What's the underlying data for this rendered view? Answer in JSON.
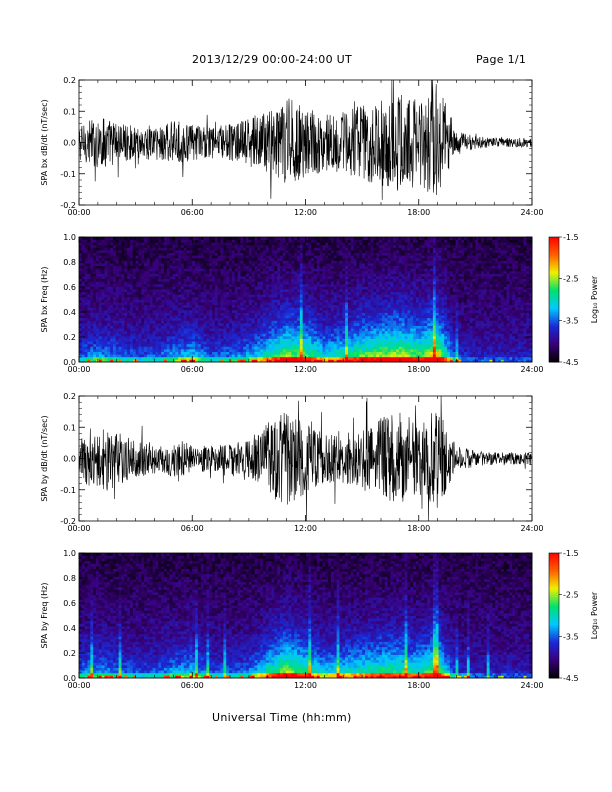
{
  "header": {
    "date_range": "2013/12/29  00:00-24:00 UT",
    "page": "Page 1/1"
  },
  "footer": {
    "xlabel": "Universal Time (hh:mm)"
  },
  "colorbar": {
    "title": "Log₁₀ Power",
    "ticks": [
      "-1.5",
      "-2.5",
      "-3.5",
      "-4.5"
    ],
    "range": [
      -4.5,
      -1.5
    ],
    "colors": [
      "#000000",
      "#3a007a",
      "#1a2ad8",
      "#00c8ff",
      "#00e070",
      "#f0f000",
      "#ff6000",
      "#ff0000"
    ]
  },
  "chart_data": [
    {
      "type": "line",
      "ylabel": "SPA bx dB/dt (nT/sec)",
      "ylim": [
        -0.2,
        0.2
      ],
      "yticks": [
        "0.2",
        "0.1",
        "0.0",
        "-0.1",
        "-0.2"
      ],
      "xticks": [
        "00:00",
        "06:00",
        "12:00",
        "18:00",
        "24:00"
      ],
      "xlim_hours": [
        0,
        24
      ],
      "envelope": {
        "hours": [
          0,
          1,
          2,
          3,
          4,
          5,
          6,
          7,
          8,
          9,
          10,
          11,
          12,
          13,
          14,
          15,
          16,
          17,
          18,
          19,
          20,
          21,
          22,
          23,
          24
        ],
        "amplitude": [
          0.05,
          0.09,
          0.07,
          0.05,
          0.06,
          0.07,
          0.06,
          0.05,
          0.06,
          0.08,
          0.1,
          0.15,
          0.12,
          0.09,
          0.1,
          0.12,
          0.14,
          0.16,
          0.14,
          0.2,
          0.04,
          0.02,
          0.015,
          0.015,
          0.015
        ]
      },
      "color": "#000000"
    },
    {
      "type": "heatmap",
      "ylabel": "SPA bx Freq (Hz)",
      "ylim": [
        0.0,
        1.0
      ],
      "yticks": [
        "1.0",
        "0.8",
        "0.6",
        "0.4",
        "0.2",
        "0.0"
      ],
      "xticks": [
        "00:00",
        "06:00",
        "12:00",
        "18:00",
        "24:00"
      ],
      "xlim_hours": [
        0,
        24
      ],
      "zlim": [
        -4.5,
        -1.5
      ],
      "activity_hours": [
        0,
        1,
        2,
        3,
        4,
        5,
        6,
        7,
        8,
        9,
        10,
        11,
        12,
        13,
        14,
        15,
        16,
        17,
        18,
        19,
        20,
        21,
        22,
        23,
        24
      ],
      "activity": [
        0.2,
        0.3,
        0.25,
        0.2,
        0.2,
        0.3,
        0.35,
        0.2,
        0.25,
        0.3,
        0.45,
        0.6,
        0.55,
        0.4,
        0.45,
        0.55,
        0.6,
        0.65,
        0.55,
        0.7,
        0.15,
        0.1,
        0.1,
        0.1,
        0.1
      ]
    },
    {
      "type": "line",
      "ylabel": "SPA by dB/dt (nT/sec)",
      "ylim": [
        -0.2,
        0.2
      ],
      "yticks": [
        "0.2",
        "0.1",
        "0.0",
        "-0.1",
        "-0.2"
      ],
      "xticks": [
        "00:00",
        "06:00",
        "12:00",
        "18:00",
        "24:00"
      ],
      "xlim_hours": [
        0,
        24
      ],
      "envelope": {
        "hours": [
          0,
          1,
          2,
          3,
          4,
          5,
          6,
          7,
          8,
          9,
          10,
          11,
          12,
          13,
          14,
          15,
          16,
          17,
          18,
          19,
          20,
          21,
          22,
          23,
          24
        ],
        "amplitude": [
          0.06,
          0.12,
          0.09,
          0.06,
          0.05,
          0.06,
          0.05,
          0.04,
          0.05,
          0.06,
          0.12,
          0.16,
          0.11,
          0.08,
          0.08,
          0.1,
          0.13,
          0.15,
          0.12,
          0.16,
          0.04,
          0.025,
          0.02,
          0.02,
          0.02
        ]
      },
      "color": "#000000"
    },
    {
      "type": "heatmap",
      "ylabel": "SPA by Freq (Hz)",
      "ylim": [
        0.0,
        1.0
      ],
      "yticks": [
        "1.0",
        "0.8",
        "0.6",
        "0.4",
        "0.2",
        "0.0"
      ],
      "xticks": [
        "00:00",
        "06:00",
        "12:00",
        "18:00",
        "24:00"
      ],
      "xlim_hours": [
        0,
        24
      ],
      "zlim": [
        -4.5,
        -1.5
      ],
      "activity_hours": [
        0,
        1,
        2,
        3,
        4,
        5,
        6,
        7,
        8,
        9,
        10,
        11,
        12,
        13,
        14,
        15,
        16,
        17,
        18,
        19,
        20,
        21,
        22,
        23,
        24
      ],
      "activity": [
        0.25,
        0.3,
        0.25,
        0.2,
        0.2,
        0.3,
        0.35,
        0.2,
        0.2,
        0.25,
        0.45,
        0.6,
        0.5,
        0.35,
        0.4,
        0.45,
        0.5,
        0.5,
        0.45,
        0.6,
        0.15,
        0.1,
        0.1,
        0.1,
        0.1
      ]
    }
  ]
}
